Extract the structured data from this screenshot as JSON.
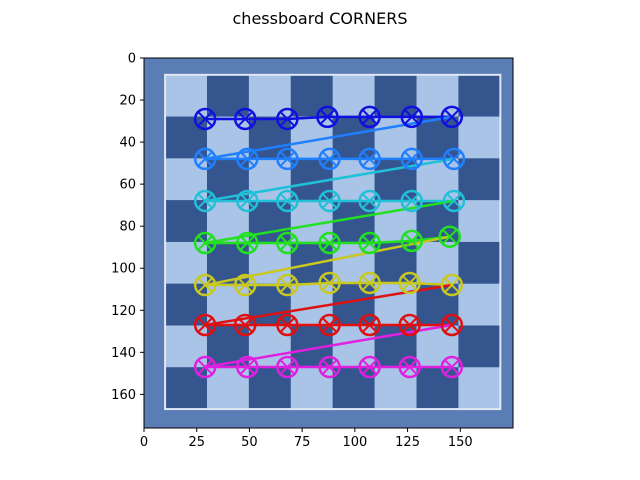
{
  "figure": {
    "title": "chessboard CORNERS"
  },
  "chart_data": {
    "type": "scatter",
    "title": "chessboard CORNERS",
    "xlabel": "",
    "ylabel": "",
    "xlim": [
      0,
      175
    ],
    "ylim": [
      176,
      0
    ],
    "x_ticks": [
      0,
      25,
      50,
      75,
      100,
      125,
      150
    ],
    "y_ticks": [
      0,
      20,
      40,
      60,
      80,
      100,
      120,
      140,
      160
    ],
    "grid": false,
    "legend": "none",
    "image": {
      "description": "photo of a blue and white checkered chessboard pattern",
      "board_bg": "#5b7db5",
      "dark_square": "#35558f",
      "light_square": "#a9c4e6",
      "board_extent": [
        0,
        175,
        0,
        176
      ]
    },
    "series": [
      {
        "color": "#1010e0",
        "x": [
          29,
          48,
          68,
          87,
          107,
          127,
          146
        ],
        "y": [
          29,
          29,
          29,
          28,
          28,
          28,
          28
        ]
      },
      {
        "color": "#1f7fff",
        "x": [
          29,
          49,
          68,
          88,
          107,
          127,
          147
        ],
        "y": [
          48,
          48,
          48,
          48,
          48,
          48,
          48
        ]
      },
      {
        "color": "#20c0d8",
        "x": [
          29,
          49,
          68,
          88,
          107,
          127,
          147
        ],
        "y": [
          68,
          68,
          68,
          68,
          68,
          68,
          68
        ]
      },
      {
        "color": "#20e020",
        "x": [
          29,
          49,
          68,
          88,
          107,
          127,
          145
        ],
        "y": [
          88,
          88,
          88,
          88,
          88,
          87,
          85
        ]
      },
      {
        "color": "#c8c820",
        "x": [
          29,
          48,
          68,
          88,
          107,
          126,
          146
        ],
        "y": [
          108,
          108,
          108,
          107,
          107,
          107,
          108
        ]
      },
      {
        "color": "#e01010",
        "x": [
          29,
          48,
          68,
          88,
          107,
          126,
          146
        ],
        "y": [
          127,
          127,
          127,
          127,
          127,
          127,
          127
        ]
      },
      {
        "color": "#e020e0",
        "x": [
          29,
          49,
          68,
          88,
          107,
          126,
          146
        ],
        "y": [
          147,
          147,
          147,
          147,
          147,
          147,
          147
        ]
      }
    ]
  }
}
